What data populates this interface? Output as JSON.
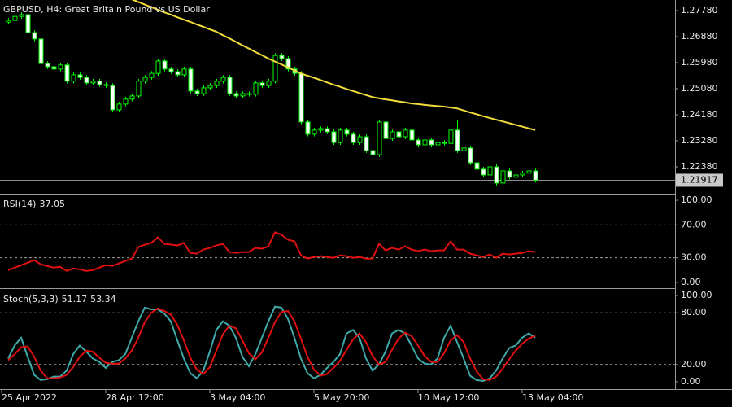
{
  "chart_data": [
    {
      "type": "candlestick",
      "title": "GBPUSD, H4:  Great Britain Pound vs US Dollar",
      "categories": [
        "25 Apr 2022",
        null,
        null,
        null,
        null,
        null,
        null,
        null,
        null,
        null,
        null,
        null,
        null,
        null,
        null,
        null,
        "28 Apr 12:00",
        null,
        null,
        null,
        null,
        null,
        null,
        null,
        null,
        null,
        null,
        null,
        null,
        null,
        null,
        null,
        "3 May 04:00",
        null,
        null,
        null,
        null,
        null,
        null,
        null,
        null,
        null,
        null,
        null,
        null,
        null,
        null,
        null,
        "5 May 20:00",
        null,
        null,
        null,
        null,
        null,
        null,
        null,
        null,
        null,
        null,
        null,
        null,
        null,
        null,
        null,
        "10 May 12:00",
        null,
        null,
        null,
        null,
        null,
        null,
        null,
        null,
        null,
        null,
        null,
        null,
        null,
        null,
        null,
        "13 May 04:00",
        null
      ],
      "open": [
        1.2738,
        1.2744,
        1.2758,
        1.2764,
        1.2702,
        1.268,
        1.2595,
        1.2584,
        1.2576,
        1.259,
        1.2534,
        1.2556,
        1.2547,
        1.2528,
        1.2534,
        1.2522,
        1.2519,
        1.2435,
        1.2455,
        1.2472,
        1.2483,
        1.2534,
        1.2547,
        1.2561,
        1.2604,
        1.2576,
        1.2567,
        1.2556,
        1.2576,
        1.25,
        1.2491,
        1.2511,
        1.2519,
        1.2534,
        1.2547,
        1.2491,
        1.2483,
        1.2491,
        1.2489,
        1.2528,
        1.2519,
        1.2534,
        1.2623,
        1.2612,
        1.2576,
        1.2561,
        1.2393,
        1.2351,
        1.2365,
        1.237,
        1.2359,
        1.2322,
        1.2365,
        1.2351,
        1.2322,
        1.2342,
        1.2294,
        1.228,
        1.2393,
        1.2336,
        1.2359,
        1.2342,
        1.2365,
        1.2331,
        1.2314,
        1.2331,
        1.2314,
        1.2322,
        1.2319,
        1.2365,
        1.2294,
        1.2303,
        1.2252,
        1.223,
        1.221,
        1.2238,
        1.2182,
        1.2224,
        1.2202,
        1.221,
        1.2216,
        1.2224
      ],
      "high": [
        1.2752,
        1.2766,
        1.2772,
        1.2772,
        1.271,
        1.2688,
        1.2603,
        1.2592,
        1.2598,
        1.2598,
        1.2564,
        1.2564,
        1.2555,
        1.2542,
        1.2542,
        1.253,
        1.2527,
        1.2463,
        1.248,
        1.2491,
        1.2542,
        1.2555,
        1.2569,
        1.2612,
        1.2612,
        1.2584,
        1.2575,
        1.2584,
        1.2584,
        1.2508,
        1.2519,
        1.2527,
        1.2542,
        1.2555,
        1.2555,
        1.2499,
        1.2499,
        1.2499,
        1.2536,
        1.2536,
        1.2542,
        1.2631,
        1.2631,
        1.262,
        1.2584,
        1.2569,
        1.2401,
        1.2373,
        1.2378,
        1.2378,
        1.2367,
        1.2373,
        1.2373,
        1.2359,
        1.235,
        1.235,
        1.2302,
        1.2401,
        1.2401,
        1.2367,
        1.2367,
        1.2373,
        1.2373,
        1.2339,
        1.2339,
        1.2339,
        1.233,
        1.233,
        1.2373,
        1.2398,
        1.2311,
        1.2311,
        1.226,
        1.2238,
        1.2246,
        1.2246,
        1.2232,
        1.2232,
        1.2218,
        1.2224,
        1.2232,
        1.2232
      ],
      "low": [
        1.273,
        1.2736,
        1.275,
        1.2694,
        1.2672,
        1.2587,
        1.2576,
        1.2568,
        1.2568,
        1.2526,
        1.2526,
        1.2539,
        1.252,
        1.252,
        1.2514,
        1.2511,
        1.2427,
        1.2427,
        1.2447,
        1.2464,
        1.2475,
        1.2526,
        1.2539,
        1.2553,
        1.2568,
        1.2559,
        1.2548,
        1.2548,
        1.2492,
        1.2483,
        1.2483,
        1.2503,
        1.2511,
        1.2526,
        1.2483,
        1.2475,
        1.2475,
        1.2481,
        1.2481,
        1.2511,
        1.2511,
        1.2526,
        1.2604,
        1.2568,
        1.2553,
        1.2385,
        1.2343,
        1.2343,
        1.2357,
        1.2351,
        1.2314,
        1.2314,
        1.2343,
        1.2314,
        1.2314,
        1.2286,
        1.2272,
        1.2272,
        1.2328,
        1.2328,
        1.2334,
        1.2334,
        1.2323,
        1.2306,
        1.2306,
        1.2306,
        1.2306,
        1.2311,
        1.2311,
        1.2286,
        1.2286,
        1.2244,
        1.2222,
        1.2202,
        1.2202,
        1.2174,
        1.2174,
        1.2194,
        1.2194,
        1.2202,
        1.2208,
        1.2184
      ],
      "close": [
        1.2744,
        1.2758,
        1.2764,
        1.2702,
        1.268,
        1.2595,
        1.2584,
        1.2576,
        1.259,
        1.2534,
        1.2556,
        1.2547,
        1.2528,
        1.2534,
        1.2522,
        1.2519,
        1.2435,
        1.2455,
        1.2472,
        1.2483,
        1.2534,
        1.2547,
        1.2561,
        1.2604,
        1.2576,
        1.2567,
        1.2556,
        1.2576,
        1.25,
        1.2491,
        1.2511,
        1.2519,
        1.2534,
        1.2547,
        1.2491,
        1.2483,
        1.2491,
        1.2489,
        1.2528,
        1.2519,
        1.2534,
        1.2623,
        1.2612,
        1.2576,
        1.2561,
        1.2393,
        1.2351,
        1.2365,
        1.237,
        1.2359,
        1.2322,
        1.2365,
        1.2351,
        1.2322,
        1.2342,
        1.2294,
        1.228,
        1.2393,
        1.2336,
        1.2359,
        1.2342,
        1.2365,
        1.2331,
        1.2314,
        1.2331,
        1.2314,
        1.2322,
        1.2319,
        1.2365,
        1.2294,
        1.2303,
        1.2252,
        1.223,
        1.221,
        1.2238,
        1.2182,
        1.2224,
        1.2202,
        1.221,
        1.2216,
        1.2224,
        1.21917
      ],
      "ma": {
        "color": "#f2dc3c",
        "values": [
          1.288,
          1.2877,
          1.2874,
          1.2871,
          1.2868,
          1.2865,
          1.2862,
          1.2859,
          1.2856,
          1.2853,
          1.285,
          1.2847,
          1.2844,
          1.2841,
          1.2838,
          1.2835,
          1.2832,
          1.2829,
          1.2826,
          1.2817,
          1.2808,
          1.2799,
          1.279,
          1.2781,
          1.2772,
          1.2764,
          1.2755,
          1.2747,
          1.2739,
          1.273,
          1.2722,
          1.2713,
          1.2705,
          1.2693,
          1.2682,
          1.267,
          1.2658,
          1.2647,
          1.2635,
          1.2624,
          1.2612,
          1.2602,
          1.2592,
          1.2582,
          1.2571,
          1.2561,
          1.2553,
          1.2546,
          1.2538,
          1.253,
          1.2522,
          1.2515,
          1.2507,
          1.25,
          1.2493,
          1.2486,
          1.2479,
          1.2475,
          1.2471,
          1.2468,
          1.2464,
          1.2461,
          1.2457,
          1.2455,
          1.2452,
          1.245,
          1.2448,
          1.2446,
          1.2443,
          1.244,
          1.2433,
          1.2426,
          1.242,
          1.2413,
          1.2407,
          1.2401,
          1.2395,
          1.2389,
          1.2383,
          1.2377,
          1.2371,
          1.2365
        ]
      },
      "bull_color": "#000000",
      "bear_color": "#ffffff",
      "wick_color": "#00ff00",
      "ylim": [
        1.2148,
        1.28146
      ],
      "yticks": [
        {
          "value": 1.2778,
          "label": "1.27780"
        },
        {
          "value": 1.2688,
          "label": "1.26880"
        },
        {
          "value": 1.2598,
          "label": "1.25980"
        },
        {
          "value": 1.2508,
          "label": "1.25080"
        },
        {
          "value": 1.2418,
          "label": "1.24180"
        },
        {
          "value": 1.2328,
          "label": "1.23280"
        },
        {
          "value": 1.2238,
          "label": "1.22380"
        }
      ]
    },
    {
      "type": "line",
      "title": "RSI(14)",
      "series": [
        {
          "color": "#e01010",
          "values": [
            15,
            18,
            21,
            24,
            27,
            22,
            20,
            18,
            19,
            14,
            17,
            16,
            14,
            15,
            18,
            21,
            20,
            23,
            26,
            29,
            43,
            46,
            48,
            55,
            47,
            46,
            45,
            48,
            36,
            35,
            40,
            42,
            45,
            47,
            37,
            36,
            37,
            37,
            42,
            41,
            44,
            61,
            58,
            52,
            50,
            33,
            29,
            31,
            32,
            31,
            30,
            33,
            32,
            30,
            31,
            29,
            29,
            47,
            39,
            42,
            40,
            44,
            40,
            38,
            40,
            38,
            39,
            39,
            50,
            40,
            40,
            35,
            33,
            31,
            34,
            30,
            35,
            34,
            35,
            36,
            38,
            37.05
          ]
        }
      ],
      "ylim": [
        -6,
        107
      ],
      "grid": true,
      "yticks": [
        {
          "value": 100,
          "label": "100.00"
        },
        {
          "value": 70,
          "label": "70.00"
        },
        {
          "value": 30,
          "label": "30.00"
        },
        {
          "value": 0,
          "label": "0.00"
        }
      ]
    },
    {
      "type": "line",
      "title": "Stoch(5,3,3)",
      "series": [
        {
          "color": "#3fa9a9",
          "values": [
            27,
            42,
            51,
            29,
            8,
            2,
            3,
            6,
            6,
            13,
            32,
            42,
            35,
            27,
            23,
            16,
            23,
            25,
            32,
            51,
            70,
            86,
            84,
            84,
            79,
            70,
            48,
            27,
            10,
            4,
            13,
            35,
            60,
            70,
            65,
            51,
            29,
            18,
            32,
            51,
            70,
            87,
            86,
            73,
            51,
            27,
            10,
            4,
            8,
            16,
            23,
            32,
            56,
            60,
            51,
            27,
            13,
            20,
            35,
            56,
            60,
            56,
            42,
            27,
            21,
            20,
            27,
            51,
            65,
            46,
            27,
            7,
            2,
            1,
            4,
            13,
            27,
            39,
            42,
            51,
            56,
            51.17
          ]
        },
        {
          "color": "#e01010",
          "values": [
            25,
            32,
            40,
            41,
            29,
            13,
            4,
            4,
            5,
            8,
            17,
            29,
            36,
            35,
            28,
            22,
            21,
            21,
            27,
            36,
            51,
            69,
            80,
            85,
            82,
            78,
            66,
            48,
            28,
            14,
            9,
            17,
            36,
            55,
            65,
            62,
            48,
            33,
            26,
            34,
            51,
            69,
            81,
            82,
            70,
            50,
            29,
            14,
            7,
            9,
            16,
            24,
            37,
            49,
            56,
            46,
            30,
            20,
            23,
            37,
            50,
            57,
            53,
            42,
            30,
            23,
            23,
            33,
            48,
            54,
            46,
            27,
            12,
            3,
            2,
            6,
            15,
            26,
            36,
            44,
            50,
            53.34
          ]
        }
      ],
      "ylim": [
        -8.5,
        106.6
      ],
      "grid": true,
      "yticks": [
        {
          "value": 100,
          "label": "100.00"
        },
        {
          "value": 80,
          "label": "80.00"
        },
        {
          "value": 20,
          "label": "20.00"
        },
        {
          "value": 0,
          "label": "0.00"
        }
      ]
    }
  ]
}
